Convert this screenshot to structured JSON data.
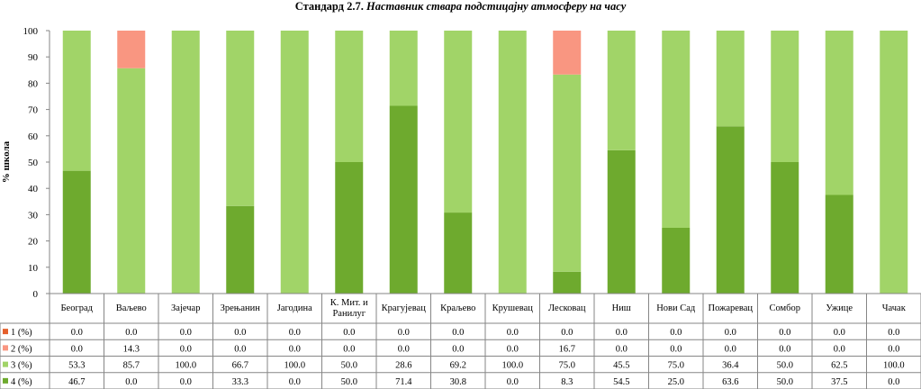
{
  "title": {
    "prefix": "Стандард 2.7.",
    "italic": "Наставник ствара подстицајну атмосферу на часу"
  },
  "chart_data": {
    "type": "bar",
    "stacked": true,
    "ylabel": "% школа",
    "ylim": [
      0,
      100
    ],
    "yticks": [
      0,
      10,
      20,
      30,
      40,
      50,
      60,
      70,
      80,
      90,
      100
    ],
    "grid": false,
    "legend": "data-table",
    "categories": [
      "Београд",
      "Ваљево",
      "Зајечар",
      "Зрењанин",
      "Јагодина",
      "К. Мит. и Ранилуг",
      "Крагујевац",
      "Краљево",
      "Крушевац",
      "Лесковац",
      "Ниш",
      "Нови Сад",
      "Пожаревац",
      "Сомбор",
      "Ужице",
      "Чачак"
    ],
    "series": [
      {
        "name": "1 (%)",
        "color": "#e5602d",
        "values": [
          0.0,
          0.0,
          0.0,
          0.0,
          0.0,
          0.0,
          0.0,
          0.0,
          0.0,
          0.0,
          0.0,
          0.0,
          0.0,
          0.0,
          0.0,
          0.0
        ]
      },
      {
        "name": "2 (%)",
        "color": "#f99681",
        "values": [
          0.0,
          14.3,
          0.0,
          0.0,
          0.0,
          0.0,
          0.0,
          0.0,
          0.0,
          16.7,
          0.0,
          0.0,
          0.0,
          0.0,
          0.0,
          0.0
        ]
      },
      {
        "name": "3 (%)",
        "color": "#a1d468",
        "values": [
          53.3,
          85.7,
          100.0,
          66.7,
          100.0,
          50.0,
          28.6,
          69.2,
          100.0,
          75.0,
          45.5,
          75.0,
          36.4,
          50.0,
          62.5,
          100.0
        ]
      },
      {
        "name": "4 (%)",
        "color": "#6eaa2e",
        "values": [
          46.7,
          0.0,
          0.0,
          33.3,
          0.0,
          50.0,
          71.4,
          30.8,
          0.0,
          8.3,
          54.5,
          25.0,
          63.6,
          50.0,
          37.5,
          0.0
        ]
      }
    ]
  }
}
